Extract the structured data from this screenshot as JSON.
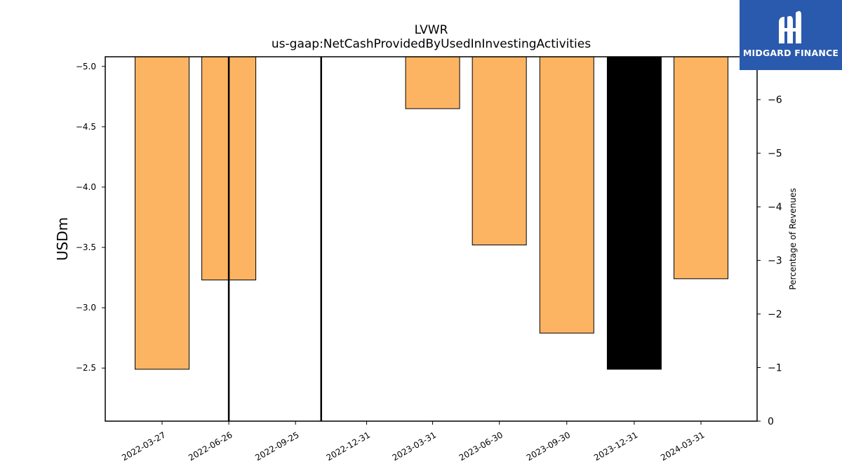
{
  "chart_data": {
    "type": "bar",
    "title": "LVWR",
    "subtitle": "us-gaap:NetCashProvidedByUsedInInvestingActivities",
    "ylabel": "USDm",
    "ylabel_right": "Percentage of Revenues",
    "x_tick_labels": [
      "2022-03-27",
      "2022-06-26",
      "2022-09-25",
      "2022-12-31",
      "2023-03-31",
      "2023-06-30",
      "2023-09-30",
      "2023-12-31",
      "2024-03-31"
    ],
    "ylim": [
      -5.08,
      -2.06
    ],
    "y_ticks": [
      -2.5,
      -3.0,
      -3.5,
      -4.0,
      -4.5,
      -5.0
    ],
    "y_tick_labels": [
      "−2.5",
      "−3.0",
      "−3.5",
      "−4.0",
      "−4.5",
      "−5.0"
    ],
    "y2lim": [
      0,
      -6.8
    ],
    "y2_ticks": [
      0,
      -1,
      -2,
      -3,
      -4,
      -5,
      -6
    ],
    "y2_tick_labels": [
      "0",
      "−1",
      "−2",
      "−3",
      "−4",
      "−5",
      "−6"
    ],
    "series": [
      {
        "color": "#fdb462",
        "bars": [
          {
            "date": "2022-03-27",
            "value": -2.49
          },
          {
            "date": "2022-06-26",
            "value": -3.23
          },
          {
            "date": "2023-03-31",
            "value": -4.65
          },
          {
            "date": "2023-06-30",
            "value": -3.52
          },
          {
            "date": "2023-09-30",
            "value": -2.79
          },
          {
            "date": "2024-03-31",
            "value": -3.24
          }
        ]
      },
      {
        "color": "#000000",
        "bars": [
          {
            "date": "2022-12-31",
            "value": -5.08
          },
          {
            "date": "2023-12-31",
            "value": -2.49
          }
        ]
      }
    ],
    "vertical_lines": [
      {
        "date": "2022-06-26",
        "color": "#000000"
      },
      {
        "date": "2022-10-30",
        "color": "#000000"
      }
    ],
    "grid": false
  },
  "logo": {
    "text": "MIDGARD FINANCE"
  }
}
